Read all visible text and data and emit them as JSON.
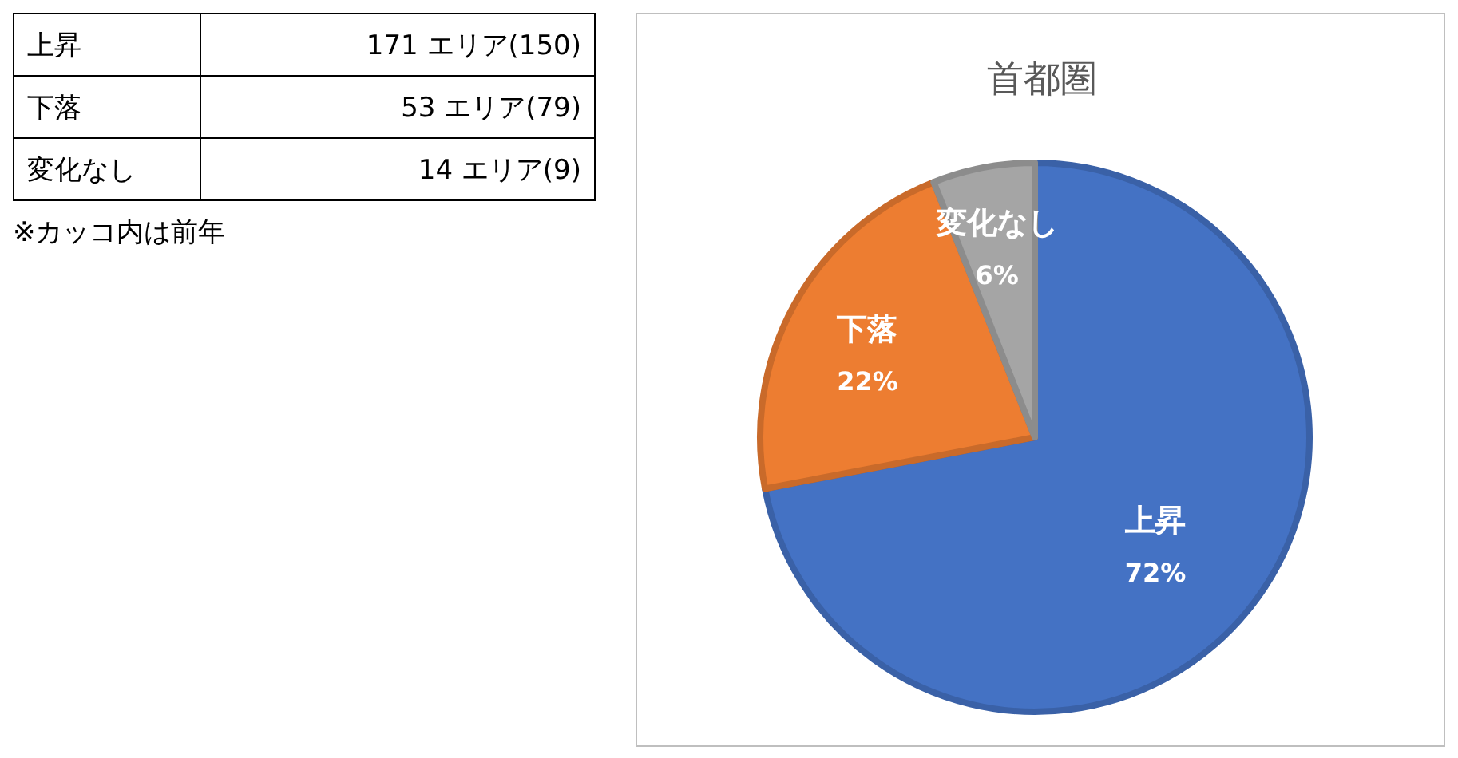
{
  "chart_data": [
    {
      "type": "other",
      "annotations": [
        "上昇",
        "171 エリア(150)",
        "下落",
        "53 エリア(79)",
        "変化なし",
        "14 エリア(9)",
        "※カッコ内は前年"
      ]
    },
    {
      "type": "pie",
      "title": "首都圏",
      "categories": [
        "上昇",
        "下落",
        "変化なし"
      ],
      "values": [
        72,
        22,
        6
      ],
      "colors": [
        "#4472c4",
        "#ed7d31",
        "#a5a5a5"
      ],
      "value_labels": [
        "72%",
        "22%",
        "6%"
      ]
    }
  ]
}
